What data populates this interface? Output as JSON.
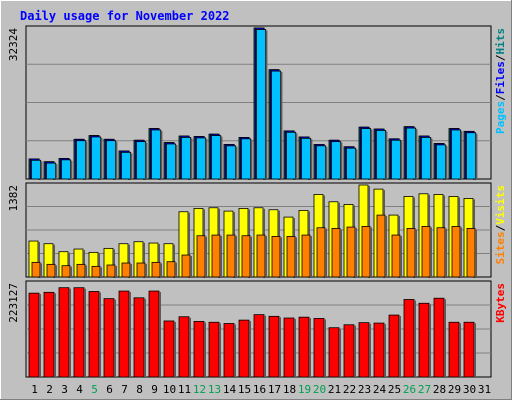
{
  "chart_data": {
    "type": "bar",
    "title": "Daily usage for November 2022",
    "categories": [
      "1",
      "2",
      "3",
      "4",
      "5",
      "6",
      "7",
      "8",
      "9",
      "10",
      "11",
      "12",
      "13",
      "14",
      "15",
      "16",
      "17",
      "18",
      "19",
      "20",
      "21",
      "22",
      "23",
      "24",
      "25",
      "26",
      "27",
      "28",
      "29",
      "30",
      "31"
    ],
    "weekend_days": [
      "5",
      "12",
      "13",
      "19",
      "20",
      "26",
      "27"
    ],
    "panels": [
      {
        "max_label": "32324",
        "ylim": [
          0,
          32324
        ],
        "legend": [
          "Pages",
          "/",
          "Files",
          "/",
          "Hits"
        ],
        "legend_colors": [
          "#00c0ff",
          "#000000",
          "#0000ff",
          "#000000",
          "#008080"
        ],
        "series": [
          {
            "name": "Hits",
            "color": "#008080",
            "values": [
              4300,
              3700,
              4400,
              8500,
              9300,
              8500,
              6000,
              8300,
              10800,
              7800,
              9200,
              9100,
              9600,
              7400,
              8900,
              32324,
              23400,
              10300,
              9000,
              7400,
              8300,
              6900,
              11100,
              10700,
              8600,
              11200,
              9200,
              7600,
              10800,
              10200,
              null
            ]
          },
          {
            "name": "Files",
            "color": "#0000ff",
            "values": [
              4300,
              3700,
              4400,
              8500,
              9300,
              8500,
              6000,
              8300,
              10800,
              7800,
              9200,
              9100,
              9600,
              7400,
              8900,
              32324,
              23400,
              10300,
              9000,
              7400,
              8300,
              6900,
              11100,
              10700,
              8600,
              11200,
              9200,
              7600,
              10800,
              10200,
              null
            ]
          },
          {
            "name": "Pages",
            "color": "#00c0ff",
            "values": [
              4000,
              3400,
              4100,
              8200,
              9000,
              8200,
              5700,
              8000,
              10500,
              7500,
              8900,
              8800,
              9300,
              7100,
              8600,
              32000,
              23100,
              10000,
              8700,
              7100,
              8000,
              6600,
              10800,
              10400,
              8300,
              10900,
              8900,
              7300,
              10500,
              9900,
              null
            ]
          }
        ]
      },
      {
        "max_label": "1382",
        "ylim": [
          0,
          1382
        ],
        "legend": [
          "Sites",
          "/",
          "Visits"
        ],
        "legend_colors": [
          "#ff8000",
          "#000000",
          "#ffff00"
        ],
        "series": [
          {
            "name": "Visits",
            "color": "#ffff00",
            "values": [
              540,
              500,
              380,
              420,
              370,
              430,
              500,
              530,
              510,
              500,
              980,
              1030,
              1040,
              990,
              1030,
              1040,
              1010,
              900,
              1000,
              1240,
              1130,
              1090,
              1382,
              1320,
              930,
              1210,
              1250,
              1240,
              1210,
              1180,
              null
            ]
          },
          {
            "name": "Sites",
            "color": "#ff8000",
            "values": [
              220,
              190,
              170,
              190,
              160,
              180,
              210,
              210,
              220,
              230,
              330,
              620,
              630,
              630,
              620,
              630,
              610,
              610,
              630,
              740,
              730,
              750,
              760,
              930,
              630,
              730,
              760,
              740,
              760,
              730,
              null
            ]
          }
        ]
      },
      {
        "max_label": "223127",
        "ylim": [
          0,
          223127
        ],
        "legend": [
          "KBytes"
        ],
        "legend_colors": [
          "#ff0000"
        ],
        "series": [
          {
            "name": "KBytes",
            "color": "#ff0000",
            "values": [
              199000,
              201000,
              212000,
              212000,
              203000,
              186000,
              204000,
              188000,
              204000,
              133000,
              143000,
              132000,
              130000,
              127000,
              135000,
              148000,
              144000,
              140000,
              142000,
              139000,
              117000,
              124000,
              129000,
              128000,
              147000,
              184000,
              175000,
              187000,
              130000,
              130000,
              null
            ]
          }
        ]
      }
    ],
    "colors": {
      "frame": "#c0c0c0",
      "plot_bg": "#c0c0c0",
      "title": "#0000ff",
      "weekend_label": "#00a050",
      "weekday_label": "#000000"
    }
  }
}
